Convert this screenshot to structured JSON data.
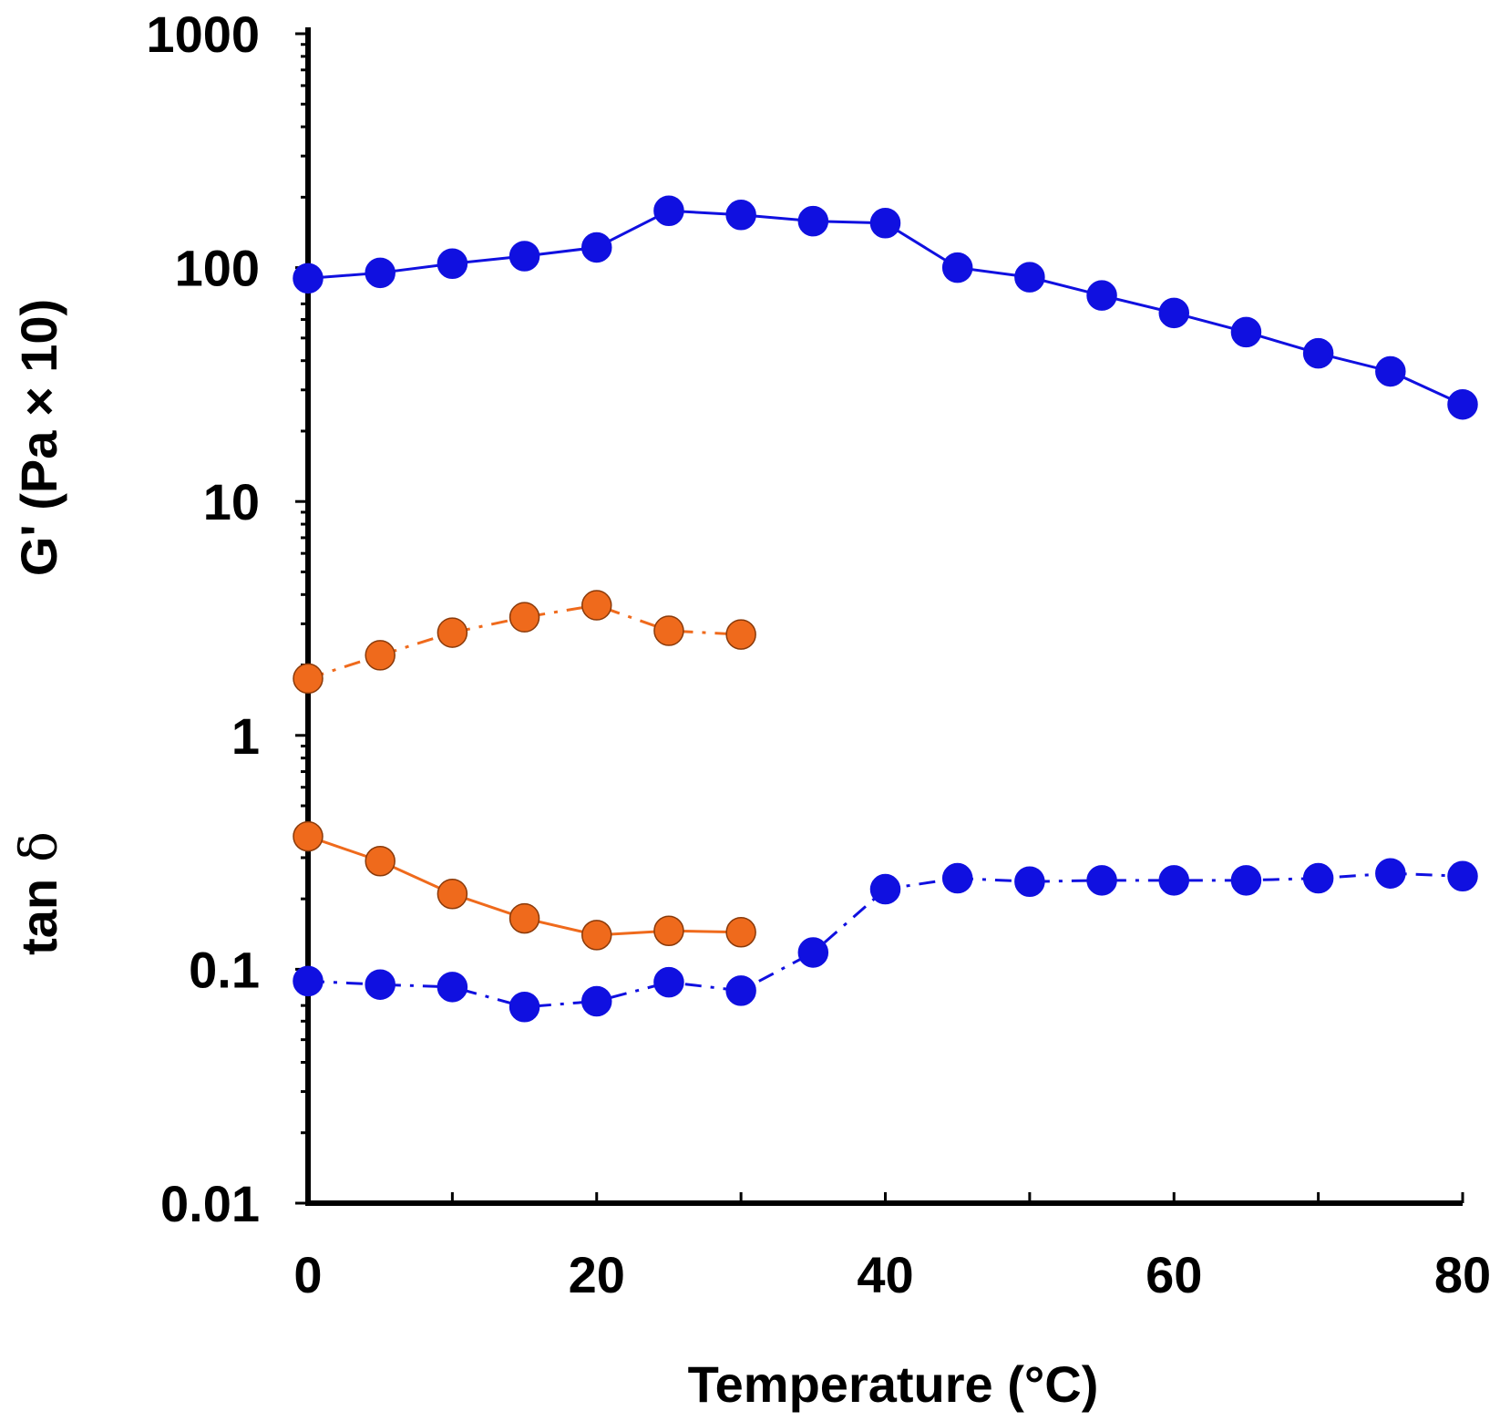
{
  "chart_data": {
    "type": "line",
    "xlabel": "Temperature (°C)",
    "ylabel_top": "G' (Pa × 10)",
    "ylabel_bottom_text": "tan",
    "ylabel_bottom_symbol": "δ",
    "yscale": "log",
    "xlim": [
      0,
      80
    ],
    "ylim": [
      0.01,
      1000
    ],
    "x_ticks": [
      "0",
      "20",
      "40",
      "60",
      "80"
    ],
    "y_ticks": [
      "1000",
      "100",
      "10",
      "1",
      "0.1",
      "0.01"
    ],
    "grid": false,
    "series": [
      {
        "color": "#1010e0",
        "line": "solid",
        "x": [
          0,
          5,
          10,
          15,
          20,
          25,
          30,
          35,
          40,
          45,
          50,
          55,
          60,
          65,
          70,
          75,
          80
        ],
        "y": [
          90,
          95,
          104,
          112,
          122,
          175,
          168,
          158,
          155,
          100,
          91,
          76,
          64,
          53,
          43,
          36,
          26
        ]
      },
      {
        "color": "#1010e0",
        "line": "dashdot",
        "x": [
          0,
          5,
          10,
          15,
          20,
          25,
          30,
          35,
          40,
          45,
          50,
          55,
          60,
          65,
          70,
          75,
          80
        ],
        "y": [
          0.089,
          0.086,
          0.084,
          0.069,
          0.073,
          0.088,
          0.081,
          0.118,
          0.22,
          0.245,
          0.237,
          0.24,
          0.24,
          0.24,
          0.245,
          0.257,
          0.25
        ]
      },
      {
        "color": "#ef6a1c",
        "line": "dashdot",
        "x": [
          0,
          5,
          10,
          15,
          20,
          25,
          30
        ],
        "y": [
          1.75,
          2.2,
          2.75,
          3.2,
          3.6,
          2.8,
          2.7
        ]
      },
      {
        "color": "#ef6a1c",
        "line": "solid",
        "x": [
          0,
          5,
          10,
          15,
          20,
          25,
          30
        ],
        "y": [
          0.37,
          0.29,
          0.21,
          0.165,
          0.14,
          0.146,
          0.144
        ]
      }
    ]
  }
}
